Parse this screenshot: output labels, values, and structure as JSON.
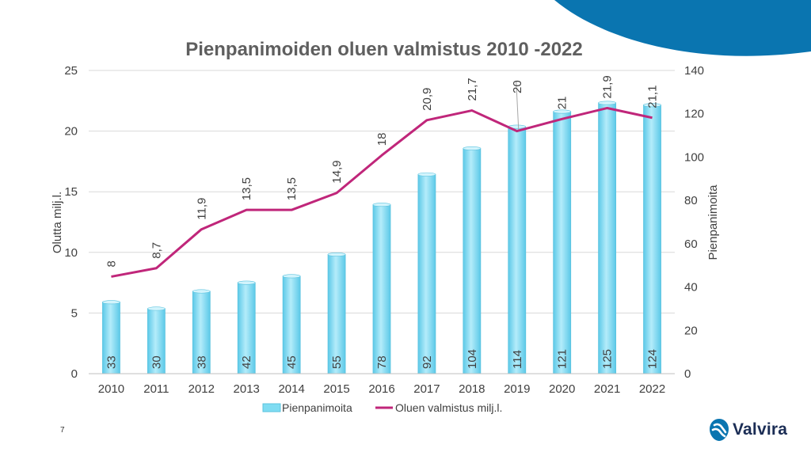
{
  "page_number": "7",
  "brand": {
    "name": "Valvira",
    "accent_color": "#0a75b0",
    "text_color": "#1b2d55"
  },
  "chart_data": {
    "type": "bar",
    "title": "Pienpanimoiden oluen valmistus 2010 -2022",
    "categories": [
      "2010",
      "2011",
      "2012",
      "2013",
      "2014",
      "2015",
      "2016",
      "2017",
      "2018",
      "2019",
      "2020",
      "2021",
      "2022"
    ],
    "series": [
      {
        "name": "Pienpanimoita",
        "type": "bar",
        "axis": "right",
        "color": "#7fdcf2",
        "values": [
          33,
          30,
          38,
          42,
          45,
          55,
          78,
          92,
          104,
          114,
          121,
          125,
          124
        ],
        "labels": [
          "33",
          "30",
          "38",
          "42",
          "45",
          "55",
          "78",
          "92",
          "104",
          "114",
          "121",
          "125",
          "124"
        ]
      },
      {
        "name": "Oluen valmistus milj.l.",
        "type": "line",
        "axis": "left",
        "color": "#c0267a",
        "values": [
          8,
          8.7,
          11.9,
          13.5,
          13.5,
          14.9,
          18,
          20.9,
          21.7,
          20,
          21,
          21.9,
          21.1
        ],
        "labels": [
          "8",
          "8,7",
          "11,9",
          "13,5",
          "13,5",
          "14,9",
          "18",
          "20,9",
          "21,7",
          "20",
          "21",
          "21,9",
          "21,1"
        ]
      }
    ],
    "ylabel": "Olutta milj.l.",
    "ylim": [
      0,
      25
    ],
    "yticks": [
      "0",
      "5",
      "10",
      "15",
      "20",
      "25"
    ],
    "y2label": "Pienpanimoita",
    "y2lim": [
      0,
      140
    ],
    "y2ticks": [
      "0",
      "20",
      "40",
      "60",
      "80",
      "100",
      "120",
      "140"
    ],
    "grid": true,
    "legend_position": "bottom"
  }
}
